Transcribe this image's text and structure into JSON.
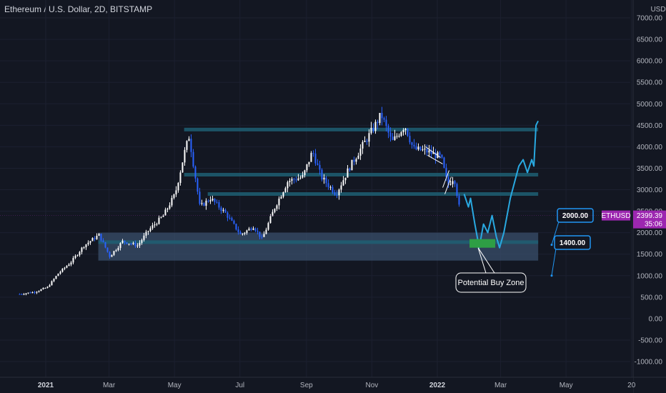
{
  "header": {
    "title": "Ethereum / U.S. Dollar, 2D, BITSTAMP"
  },
  "colors": {
    "background": "#131722",
    "candle_up": "#ffffff",
    "candle_down": "#2962ff",
    "level_line": "#1f5f73",
    "projection": "#29a9e1",
    "buy_zone": "#2e9e45",
    "support_band": "#3a4f6b",
    "price_tag": "#9c27b0",
    "callout_border": "#2196f3"
  },
  "chart_data": {
    "type": "candlestick",
    "symbol": "ETHUSD",
    "price_scale_label": "USD",
    "y_ticks": [
      -1000,
      -500,
      0,
      500,
      1000,
      1500,
      2000,
      2500,
      3000,
      3500,
      4000,
      4500,
      5000,
      5500,
      6000,
      6500,
      7000
    ],
    "y_tick_labels": [
      "-1000.00",
      "-500.00",
      "0.00",
      "500.00",
      "1000.00",
      "1500.00",
      "2000.00",
      "2500.00",
      "3000.00",
      "3500.00",
      "4000.00",
      "4500.00",
      "5000.00",
      "5500.00",
      "6000.00",
      "6500.00",
      "7000.00"
    ],
    "x_labels": [
      {
        "label": "2021",
        "date": "2021-01-01",
        "bold": true
      },
      {
        "label": "Mar",
        "date": "2021-03-01",
        "bold": false
      },
      {
        "label": "May",
        "date": "2021-05-01",
        "bold": false
      },
      {
        "label": "Jul",
        "date": "2021-07-01",
        "bold": false
      },
      {
        "label": "Sep",
        "date": "2021-09-01",
        "bold": false
      },
      {
        "label": "Nov",
        "date": "2021-11-01",
        "bold": false
      },
      {
        "label": "2022",
        "date": "2022-01-01",
        "bold": true
      },
      {
        "label": "Mar",
        "date": "2022-03-01",
        "bold": false
      },
      {
        "label": "May",
        "date": "2022-05-01",
        "bold": false
      },
      {
        "label": "20",
        "date": "2022-07-01",
        "bold": false
      }
    ],
    "price_path": [
      [
        "2020-12-07",
        570
      ],
      [
        "2020-12-21",
        620
      ],
      [
        "2021-01-02",
        730
      ],
      [
        "2021-01-12",
        1050
      ],
      [
        "2021-01-24",
        1320
      ],
      [
        "2021-02-05",
        1700
      ],
      [
        "2021-02-19",
        1950
      ],
      [
        "2021-03-01",
        1450
      ],
      [
        "2021-03-13",
        1800
      ],
      [
        "2021-03-27",
        1700
      ],
      [
        "2021-04-06",
        2050
      ],
      [
        "2021-04-20",
        2400
      ],
      [
        "2021-05-01",
        2900
      ],
      [
        "2021-05-10",
        3900
      ],
      [
        "2021-05-14",
        4250
      ],
      [
        "2021-05-24",
        2600
      ],
      [
        "2021-06-03",
        2800
      ],
      [
        "2021-06-17",
        2450
      ],
      [
        "2021-07-01",
        1950
      ],
      [
        "2021-07-13",
        2150
      ],
      [
        "2021-07-21",
        1850
      ],
      [
        "2021-08-02",
        2600
      ],
      [
        "2021-08-14",
        3200
      ],
      [
        "2021-08-28",
        3300
      ],
      [
        "2021-09-06",
        3900
      ],
      [
        "2021-09-14",
        3300
      ],
      [
        "2021-09-28",
        2900
      ],
      [
        "2021-10-10",
        3500
      ],
      [
        "2021-10-22",
        4000
      ],
      [
        "2021-11-01",
        4400
      ],
      [
        "2021-11-09",
        4750
      ],
      [
        "2021-11-19",
        4100
      ],
      [
        "2021-12-01",
        4500
      ],
      [
        "2021-12-09",
        3950
      ],
      [
        "2021-12-21",
        3900
      ],
      [
        "2022-01-04",
        3750
      ],
      [
        "2022-01-10",
        3100
      ],
      [
        "2022-01-16",
        3300
      ],
      [
        "2022-01-22",
        2400
      ]
    ],
    "horizontal_levels": [
      {
        "price": 4400,
        "from": "2021-05-10",
        "to": "2022-04-05"
      },
      {
        "price": 3350,
        "from": "2021-05-10",
        "to": "2022-04-05"
      },
      {
        "price": 2900,
        "from": "2021-06-01",
        "to": "2022-04-05"
      },
      {
        "price": 1780,
        "from": "2021-02-19",
        "to": "2022-04-05"
      }
    ],
    "support_band": {
      "from": "2021-02-19",
      "to": "2022-04-05",
      "low": 1350,
      "high": 2000
    },
    "buy_zone": {
      "from": "2022-01-31",
      "to": "2022-02-24",
      "low": 1650,
      "high": 1850,
      "label": "Potential Buy Zone"
    },
    "projection": [
      [
        "2022-01-26",
        2900
      ],
      [
        "2022-01-30",
        2600
      ],
      [
        "2022-02-01",
        2800
      ],
      [
        "2022-02-05",
        2200
      ],
      [
        "2022-02-09",
        1650
      ],
      [
        "2022-02-13",
        2200
      ],
      [
        "2022-02-17",
        2000
      ],
      [
        "2022-02-21",
        2400
      ],
      [
        "2022-02-25",
        1900
      ],
      [
        "2022-02-28",
        1650
      ],
      [
        "2022-03-04",
        2000
      ],
      [
        "2022-03-10",
        2800
      ],
      [
        "2022-03-18",
        3550
      ],
      [
        "2022-03-22",
        3700
      ],
      [
        "2022-03-26",
        3400
      ],
      [
        "2022-03-30",
        3700
      ],
      [
        "2022-04-01",
        3550
      ],
      [
        "2022-04-03",
        4500
      ],
      [
        "2022-04-05",
        4600
      ]
    ],
    "channel_segments": [
      [
        [
          "2021-12-21",
          4000
        ],
        [
          "2022-01-04",
          3750
        ]
      ],
      [
        [
          "2021-12-23",
          3800
        ],
        [
          "2022-01-06",
          3600
        ]
      ],
      [
        [
          "2022-01-06",
          3050
        ],
        [
          "2022-01-12",
          3450
        ]
      ],
      [
        [
          "2022-01-08",
          2900
        ],
        [
          "2022-01-14",
          3300
        ]
      ]
    ],
    "callouts": [
      {
        "label": "2000.00",
        "price": 2000
      },
      {
        "label": "1400.00",
        "price": 1400
      }
    ],
    "current_price": {
      "symbol": "ETHUSD",
      "price": "2399.39",
      "countdown": "35:06",
      "value": 2399.39
    }
  }
}
